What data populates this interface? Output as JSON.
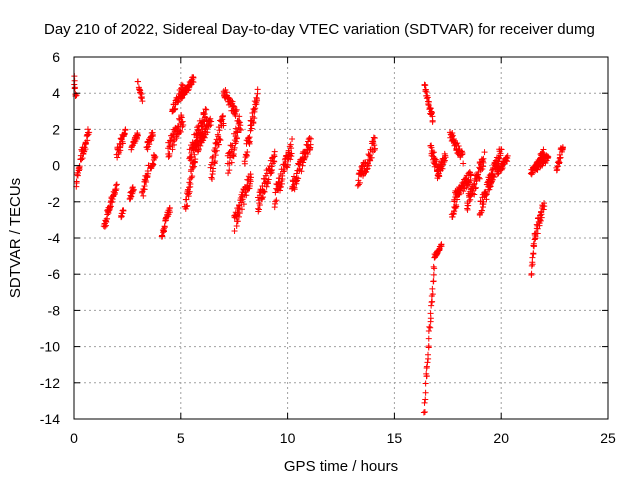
{
  "chart_data": {
    "type": "scatter",
    "title": "Day 210 of 2022, Sidereal Day-to-day VTEC variation (SDTVAR) for receiver dumg",
    "xlabel": "GPS time / hours",
    "ylabel": "SDTVAR / TECUs",
    "xlim": [
      0,
      25
    ],
    "ylim": [
      -14,
      6
    ],
    "xticks": [
      0,
      5,
      10,
      15,
      20,
      25
    ],
    "yticks": [
      -14,
      -12,
      -10,
      -8,
      -6,
      -4,
      -2,
      0,
      2,
      4,
      6
    ],
    "grid": true,
    "marker": "+",
    "color": "#ff0000",
    "series": [
      {
        "name": "SDTVAR",
        "segments": [
          {
            "x0": 0.0,
            "x1": 0.1,
            "y0": 4.8,
            "y1": 3.8,
            "jitter": 0.3
          },
          {
            "x0": 0.1,
            "x1": 0.4,
            "y0": -1.0,
            "y1": 1.0,
            "jitter": 0.6
          },
          {
            "x0": 0.4,
            "x1": 0.7,
            "y0": 0.5,
            "y1": 2.0,
            "jitter": 0.4
          },
          {
            "x0": 1.4,
            "x1": 1.6,
            "y0": -3.5,
            "y1": -2.5,
            "jitter": 0.4
          },
          {
            "x0": 1.6,
            "x1": 2.0,
            "y0": -2.5,
            "y1": -1.2,
            "jitter": 0.4
          },
          {
            "x0": 2.0,
            "x1": 2.4,
            "y0": 0.5,
            "y1": 2.0,
            "jitter": 0.7
          },
          {
            "x0": 2.2,
            "x1": 2.3,
            "y0": -2.8,
            "y1": -2.5,
            "jitter": 0.2
          },
          {
            "x0": 2.6,
            "x1": 2.8,
            "y0": -1.8,
            "y1": -1.2,
            "jitter": 0.3
          },
          {
            "x0": 2.7,
            "x1": 3.0,
            "y0": 1.0,
            "y1": 1.8,
            "jitter": 0.3
          },
          {
            "x0": 3.0,
            "x1": 3.2,
            "y0": 4.6,
            "y1": 3.6,
            "jitter": 0.3
          },
          {
            "x0": 3.2,
            "x1": 3.5,
            "y0": -1.5,
            "y1": -0.2,
            "jitter": 0.6
          },
          {
            "x0": 3.4,
            "x1": 3.7,
            "y0": 1.0,
            "y1": 1.8,
            "jitter": 0.4
          },
          {
            "x0": 3.6,
            "x1": 3.8,
            "y0": -0.2,
            "y1": 0.6,
            "jitter": 0.4
          },
          {
            "x0": 4.1,
            "x1": 4.3,
            "y0": -4.0,
            "y1": -3.0,
            "jitter": 0.3
          },
          {
            "x0": 4.3,
            "x1": 4.5,
            "y0": -3.0,
            "y1": -2.4,
            "jitter": 0.3
          },
          {
            "x0": 4.4,
            "x1": 5.1,
            "y0": 0.8,
            "y1": 2.6,
            "jitter": 0.9
          },
          {
            "x0": 4.6,
            "x1": 5.1,
            "y0": 3.0,
            "y1": 4.3,
            "jitter": 0.5
          },
          {
            "x0": 5.0,
            "x1": 5.6,
            "y0": 3.8,
            "y1": 4.8,
            "jitter": 0.4
          },
          {
            "x0": 5.2,
            "x1": 5.8,
            "y0": -2.5,
            "y1": 1.5,
            "jitter": 0.8
          },
          {
            "x0": 5.4,
            "x1": 6.2,
            "y0": 0.5,
            "y1": 3.0,
            "jitter": 0.9
          },
          {
            "x0": 5.8,
            "x1": 6.4,
            "y0": 1.0,
            "y1": 2.5,
            "jitter": 0.6
          },
          {
            "x0": 6.4,
            "x1": 7.0,
            "y0": -0.5,
            "y1": 2.8,
            "jitter": 1.2
          },
          {
            "x0": 7.0,
            "x1": 7.6,
            "y0": 4.2,
            "y1": 2.8,
            "jitter": 0.6
          },
          {
            "x0": 7.2,
            "x1": 7.8,
            "y0": 0.0,
            "y1": 2.5,
            "jitter": 1.2
          },
          {
            "x0": 7.5,
            "x1": 8.3,
            "y0": -3.3,
            "y1": -0.5,
            "jitter": 1.0
          },
          {
            "x0": 8.0,
            "x1": 8.6,
            "y0": 0.5,
            "y1": 3.9,
            "jitter": 1.0
          },
          {
            "x0": 8.6,
            "x1": 9.4,
            "y0": -2.2,
            "y1": 0.5,
            "jitter": 1.0
          },
          {
            "x0": 9.4,
            "x1": 10.2,
            "y0": -1.8,
            "y1": 1.0,
            "jitter": 1.0
          },
          {
            "x0": 10.2,
            "x1": 11.1,
            "y0": -1.2,
            "y1": 1.4,
            "jitter": 0.9
          },
          {
            "x0": 13.3,
            "x1": 14.1,
            "y0": -1.0,
            "y1": 1.3,
            "jitter": 0.9
          },
          {
            "x0": 16.4,
            "x1": 16.5,
            "y0": -13.8,
            "y1": -11.5,
            "jitter": 0.4
          },
          {
            "x0": 16.5,
            "x1": 16.9,
            "y0": -11.5,
            "y1": -5.0,
            "jitter": 0.4
          },
          {
            "x0": 16.9,
            "x1": 17.2,
            "y0": -5.0,
            "y1": -4.4,
            "jitter": 0.2
          },
          {
            "x0": 16.4,
            "x1": 16.8,
            "y0": 4.4,
            "y1": 2.5,
            "jitter": 0.4
          },
          {
            "x0": 16.7,
            "x1": 17.1,
            "y0": 1.0,
            "y1": -0.5,
            "jitter": 0.6
          },
          {
            "x0": 17.0,
            "x1": 17.4,
            "y0": -0.5,
            "y1": 0.5,
            "jitter": 0.6
          },
          {
            "x0": 17.6,
            "x1": 18.2,
            "y0": 1.8,
            "y1": 0.4,
            "jitter": 0.6
          },
          {
            "x0": 17.7,
            "x1": 17.9,
            "y0": -2.8,
            "y1": -2.2,
            "jitter": 0.3
          },
          {
            "x0": 17.8,
            "x1": 18.6,
            "y0": -1.8,
            "y1": -0.5,
            "jitter": 0.6
          },
          {
            "x0": 18.4,
            "x1": 19.2,
            "y0": -2.2,
            "y1": 0.4,
            "jitter": 0.9
          },
          {
            "x0": 19.0,
            "x1": 19.6,
            "y0": -2.4,
            "y1": -0.5,
            "jitter": 0.8
          },
          {
            "x0": 19.4,
            "x1": 20.0,
            "y0": -1.0,
            "y1": 0.8,
            "jitter": 0.8
          },
          {
            "x0": 19.8,
            "x1": 20.3,
            "y0": -0.4,
            "y1": 0.4,
            "jitter": 0.4
          },
          {
            "x0": 21.4,
            "x1": 21.5,
            "y0": -6.0,
            "y1": -4.8,
            "jitter": 0.3
          },
          {
            "x0": 21.5,
            "x1": 22.0,
            "y0": -4.2,
            "y1": -2.2,
            "jitter": 0.7
          },
          {
            "x0": 21.4,
            "x1": 22.2,
            "y0": -0.4,
            "y1": 0.5,
            "jitter": 0.4
          },
          {
            "x0": 21.6,
            "x1": 22.0,
            "y0": 0.0,
            "y1": 0.8,
            "jitter": 0.4
          },
          {
            "x0": 22.6,
            "x1": 22.9,
            "y0": -0.2,
            "y1": 1.2,
            "jitter": 0.4
          }
        ]
      }
    ]
  }
}
